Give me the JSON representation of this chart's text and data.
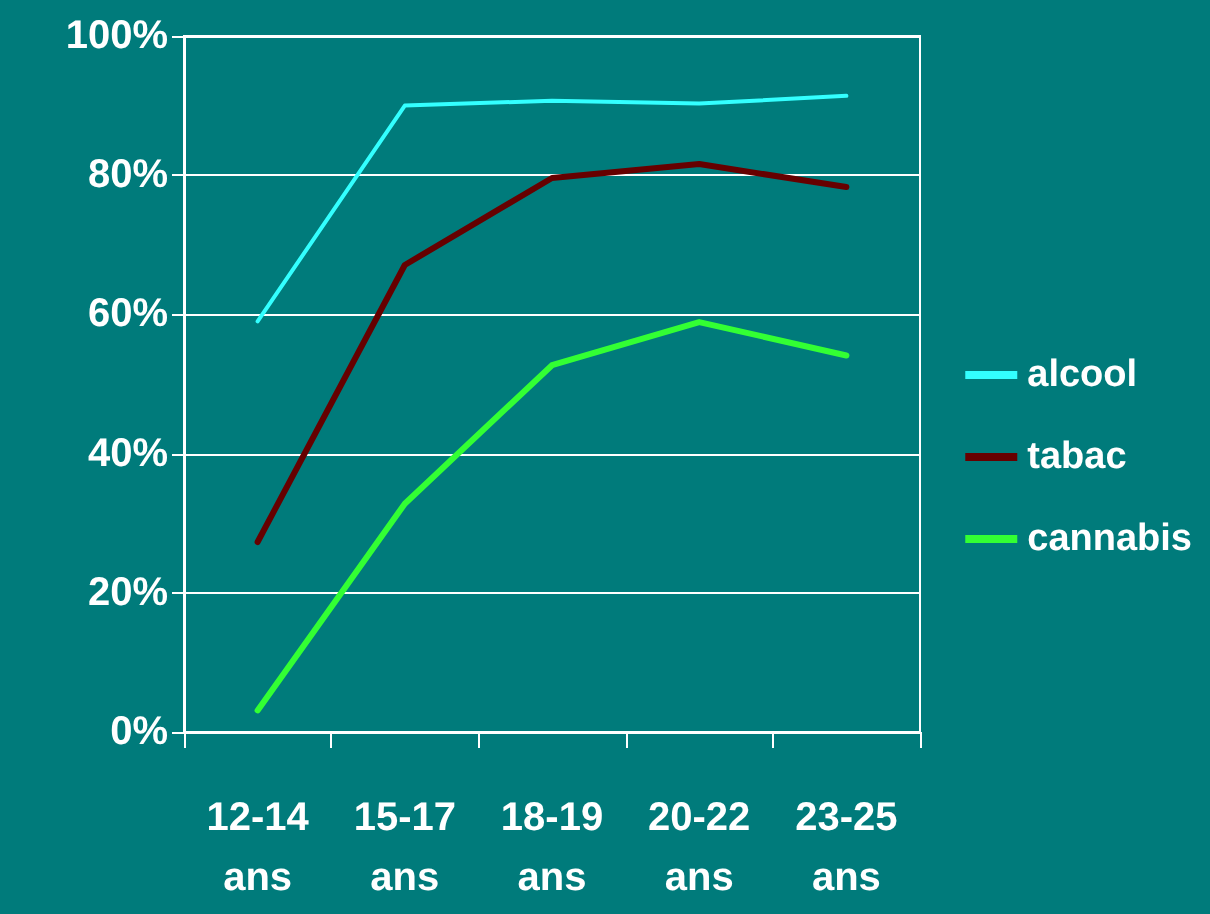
{
  "chart_data": {
    "type": "line",
    "categories": [
      "12-14\nans",
      "15-17\nans",
      "18-19\nans",
      "20-22\nans",
      "23-25\nans"
    ],
    "series": [
      {
        "name": "alcool",
        "color": "#33ffff",
        "values": [
          59,
          90,
          90.7,
          90.3,
          91.4
        ]
      },
      {
        "name": "tabac",
        "color": "#660000",
        "values": [
          27.3,
          67.1,
          79.6,
          81.6,
          78.3
        ]
      },
      {
        "name": "cannabis",
        "color": "#33ff33",
        "values": [
          3.1,
          32.8,
          52.7,
          58.9,
          54.1
        ]
      }
    ],
    "ylim": [
      0,
      100
    ],
    "yticks": [
      {
        "value": 0,
        "label": "0%"
      },
      {
        "value": 20,
        "label": "20%"
      },
      {
        "value": 40,
        "label": "40%"
      },
      {
        "value": 60,
        "label": "60%"
      },
      {
        "value": 80,
        "label": "80%"
      },
      {
        "value": 100,
        "label": "100%"
      }
    ],
    "grid": "y",
    "legend": "right",
    "marker": "none",
    "line_style": "solid"
  }
}
